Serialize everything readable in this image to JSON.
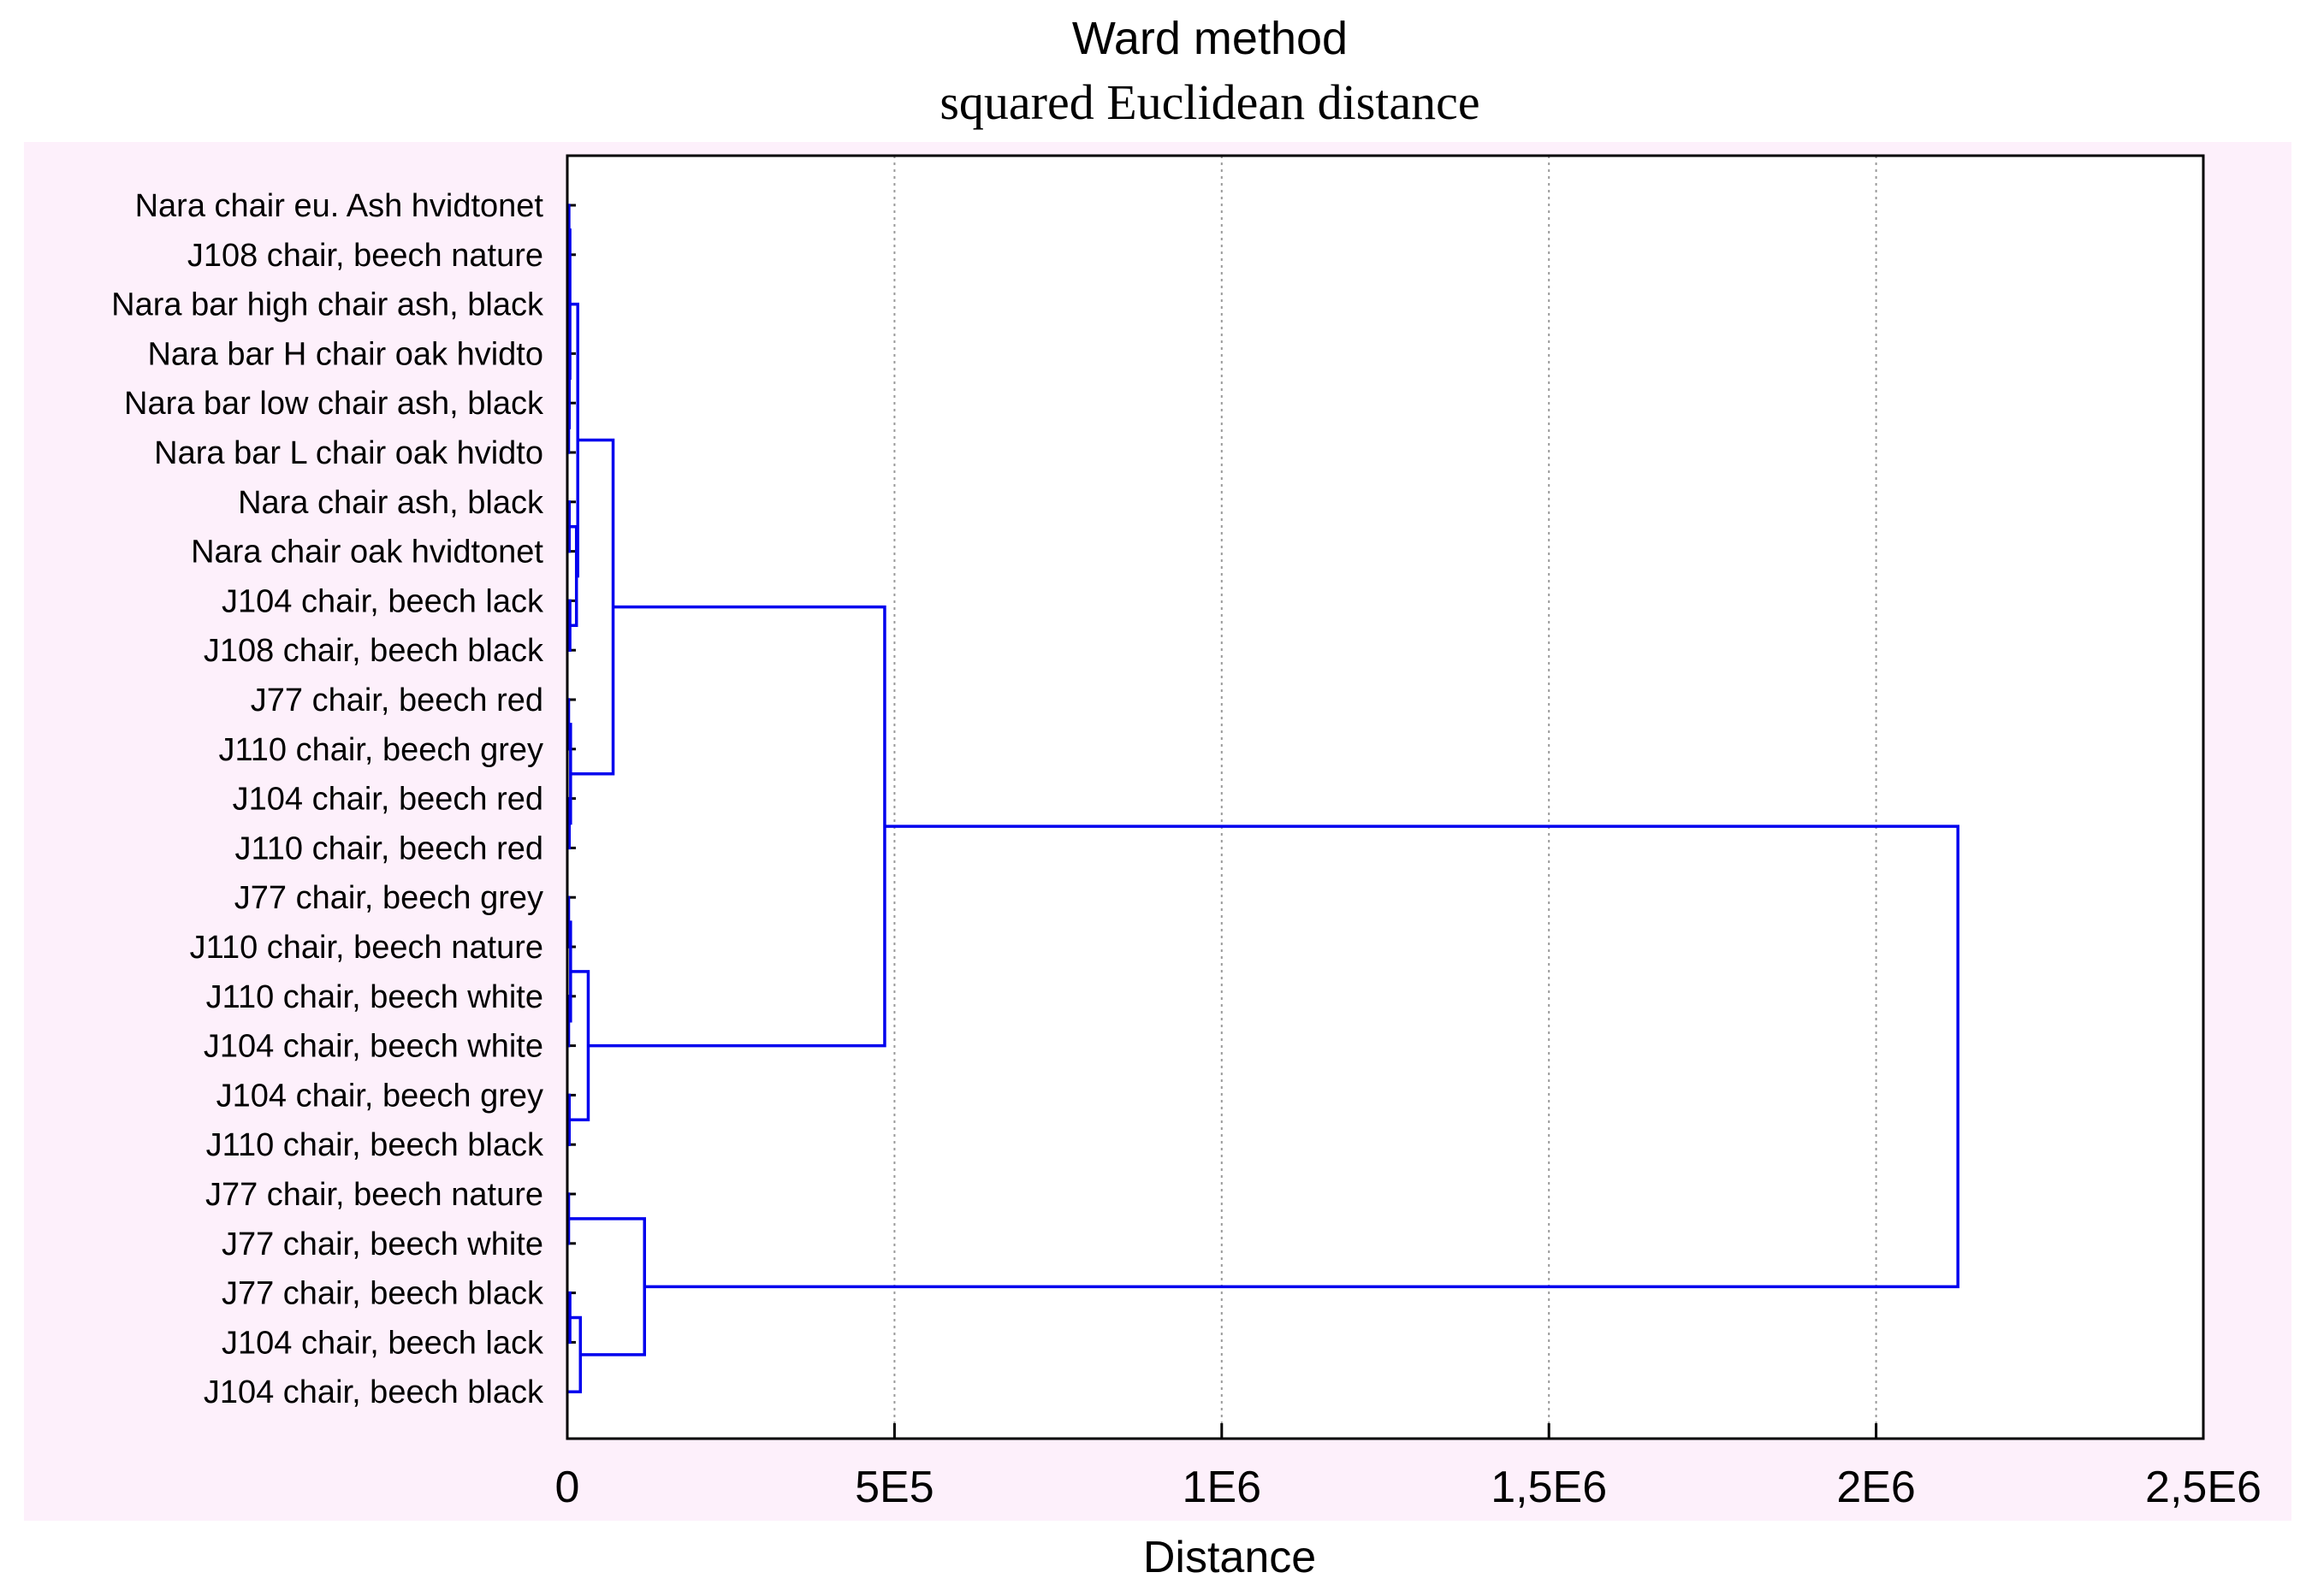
{
  "chart_data": {
    "type": "dendrogram",
    "title": "Ward method",
    "subtitle": "squared Euclidean distance",
    "xlabel": "Distance",
    "xlim": [
      0,
      2500000
    ],
    "xticks": [
      {
        "value": 0,
        "label": "0"
      },
      {
        "value": 500000,
        "label": "5E5"
      },
      {
        "value": 1000000,
        "label": "1E6"
      },
      {
        "value": 1500000,
        "label": "1,5E6"
      },
      {
        "value": 2000000,
        "label": "2E6"
      },
      {
        "value": 2500000,
        "label": "2,5E6"
      }
    ],
    "grid": "vertical dotted",
    "line_color": "#0000ee",
    "background_color": "#fdf0fb",
    "leaves": [
      "Nara chair eu. Ash hvidtonet",
      "J108 chair, beech nature",
      "Nara bar high chair ash, black",
      "Nara bar H  chair oak hvidto",
      "Nara bar low chair ash, black",
      "Nara bar L chair oak hvidto",
      "Nara chair ash, black",
      "Nara chair oak hvidtonet",
      "J104 chair, beech lack",
      "J108 chair, beech black",
      "J77 chair, beech red",
      "J110 chair, beech grey",
      "J104 chair, beech red",
      "J110 chair, beech red",
      "J77 chair, beech grey",
      "J110 chair, beech nature",
      "J110 chair, beech white",
      "J104 chair, beech white",
      "J104 chair, beech grey",
      "J110 chair, beech black",
      "J77 chair, beech nature",
      "J77 chair, beech white",
      "J77 chair, beech black",
      "J104 chair, beech lack",
      "J104 chair, beech black"
    ],
    "merges": [
      {
        "a": "L0",
        "b": "L1",
        "d": 2500
      },
      {
        "a": "L2",
        "b": "L3",
        "d": 2000
      },
      {
        "a": "L4",
        "b": "L5",
        "d": 2000
      },
      {
        "a": "M1",
        "b": "M2",
        "d": 3000
      },
      {
        "a": "M0",
        "b": "M3",
        "d": 4000
      },
      {
        "a": "L6",
        "b": "L7",
        "d": 3000
      },
      {
        "a": "L8",
        "b": "L9",
        "d": 4000
      },
      {
        "a": "M5",
        "b": "M6",
        "d": 14000
      },
      {
        "a": "M4",
        "b": "M7",
        "d": 16000
      },
      {
        "a": "L10",
        "b": "L11",
        "d": 2000
      },
      {
        "a": "L12",
        "b": "L13",
        "d": 3000
      },
      {
        "a": "M9",
        "b": "M10",
        "d": 5000
      },
      {
        "a": "M8",
        "b": "M11",
        "d": 70000
      },
      {
        "a": "L14",
        "b": "L15",
        "d": 2000
      },
      {
        "a": "L16",
        "b": "L17",
        "d": 2000
      },
      {
        "a": "M13",
        "b": "M14",
        "d": 5000
      },
      {
        "a": "L18",
        "b": "L19",
        "d": 3000
      },
      {
        "a": "M15",
        "b": "M16",
        "d": 32000
      },
      {
        "a": "M12",
        "b": "M17",
        "d": 485000
      },
      {
        "a": "L20",
        "b": "L21",
        "d": 2000
      },
      {
        "a": "L22",
        "b": "L23",
        "d": 4000
      },
      {
        "a": "M20",
        "b": "L24",
        "d": 20000
      },
      {
        "a": "M19",
        "b": "M21",
        "d": 118000
      },
      {
        "a": "M18",
        "b": "M22",
        "d": 2125000
      }
    ]
  }
}
